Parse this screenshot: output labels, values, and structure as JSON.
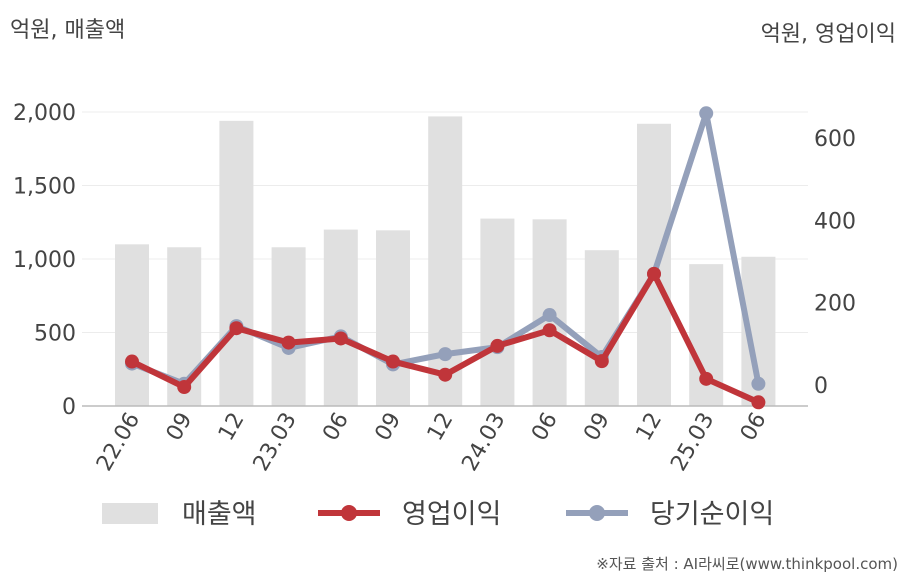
{
  "left_unit": "억원, 매출액",
  "right_unit": "억원, 영업이익",
  "source": "※자료 출처 : AI라씨로(www.thinkpool.com)",
  "colors": {
    "revenue": "#e0e0e0",
    "operating_profit": "#c0353a",
    "net_income": "#94a0ba",
    "axis": "#bbbbbb",
    "grid": "#ececec"
  },
  "chart_data": {
    "type": "bar",
    "categories": [
      "22.06",
      "09",
      "12",
      "23.03",
      "06",
      "09",
      "12",
      "24.03",
      "06",
      "09",
      "12",
      "25.03",
      "06"
    ],
    "y_left": {
      "lim": [
        0,
        2000
      ],
      "ticks": [
        "0",
        "500",
        "1,000",
        "1,500",
        "2,000"
      ],
      "tick_values": [
        0,
        500,
        1000,
        1500,
        2000
      ]
    },
    "y_right": {
      "lim": [
        -50,
        660
      ],
      "ticks": [
        "0",
        "200",
        "400",
        "600"
      ],
      "tick_values": [
        0,
        200,
        400,
        600
      ]
    },
    "series": [
      {
        "name": "매출액",
        "type": "bar",
        "axis": "left",
        "values": [
          1100,
          1080,
          1940,
          1080,
          1200,
          1195,
          1970,
          1275,
          1270,
          1060,
          1920,
          965,
          1015
        ]
      },
      {
        "name": "영업이익",
        "type": "line",
        "axis": "right",
        "values": [
          57,
          -5,
          138,
          103,
          113,
          57,
          25,
          95,
          133,
          58,
          270,
          15,
          -42
        ]
      },
      {
        "name": "당기순이익",
        "type": "line",
        "axis": "right",
        "values": [
          52,
          3,
          143,
          90,
          118,
          50,
          75,
          92,
          170,
          68,
          270,
          660,
          3
        ]
      }
    ],
    "grid": true,
    "legend": "bottom"
  }
}
